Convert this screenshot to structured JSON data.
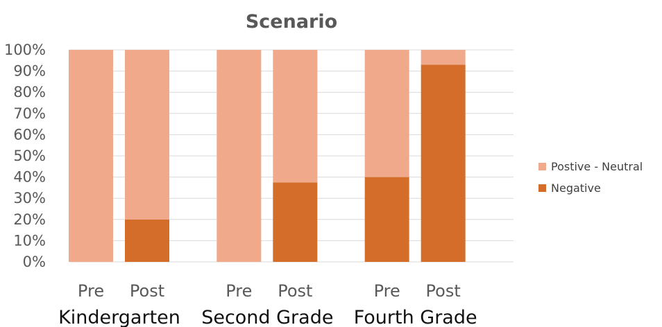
{
  "chart_data": {
    "type": "bar",
    "stacked": true,
    "percent": true,
    "title": "Scenario",
    "xlabel": "",
    "ylabel": "",
    "ylim": [
      0,
      100
    ],
    "y_ticks": [
      "0%",
      "10%",
      "20%",
      "30%",
      "40%",
      "50%",
      "60%",
      "70%",
      "80%",
      "90%",
      "100%"
    ],
    "grid": true,
    "legend_position": "right",
    "groups": [
      {
        "name": "Kindergarten",
        "categories": [
          "Pre",
          "Post"
        ]
      },
      {
        "name": "Second Grade",
        "categories": [
          "Pre",
          "Post"
        ]
      },
      {
        "name": "Fourth Grade",
        "categories": [
          "Pre",
          "Post"
        ]
      }
    ],
    "categories": [
      "Pre",
      "Post",
      "Pre",
      "Post",
      "Pre",
      "Post"
    ],
    "series": [
      {
        "name": "Negative",
        "color": "#d46d2a",
        "values": [
          0,
          20,
          0,
          37.5,
          40,
          93
        ]
      },
      {
        "name": "Postive - Neutral",
        "color": "#f0a98a",
        "values": [
          100,
          80,
          100,
          62.5,
          60,
          7
        ]
      }
    ],
    "legend": [
      "Postive - Neutral",
      "Negative"
    ]
  }
}
